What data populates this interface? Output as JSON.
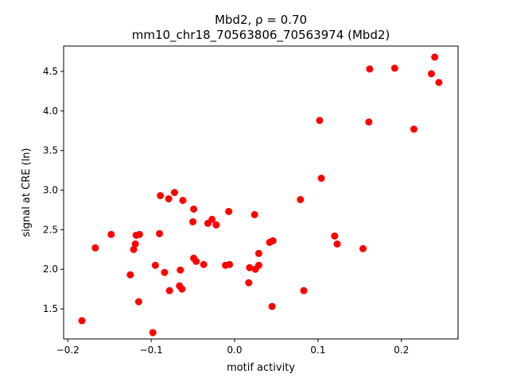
{
  "chart_data": {
    "type": "scatter",
    "title_line1": "Mbd2, ρ = 0.70",
    "title_line2": "mm10_chr18_70563806_70563974 (Mbd2)",
    "xlabel": "motif activity",
    "ylabel": "signal at CRE (ln)",
    "xlim": [
      -0.205,
      0.268
    ],
    "ylim": [
      1.12,
      4.82
    ],
    "xticks": [
      -0.2,
      -0.1,
      0.0,
      0.1,
      0.2
    ],
    "xtick_labels": [
      "−0.2",
      "−0.1",
      "0.0",
      "0.1",
      "0.2"
    ],
    "yticks": [
      1.5,
      2.0,
      2.5,
      3.0,
      3.5,
      4.0,
      4.5
    ],
    "ytick_labels": [
      "1.5",
      "2.0",
      "2.5",
      "3.0",
      "3.5",
      "4.0",
      "4.5"
    ],
    "point_color": "#ff0000",
    "grid": false,
    "points": [
      {
        "x": -0.183,
        "y": 1.35
      },
      {
        "x": -0.167,
        "y": 2.27
      },
      {
        "x": -0.148,
        "y": 2.44
      },
      {
        "x": -0.125,
        "y": 1.93
      },
      {
        "x": -0.121,
        "y": 2.25
      },
      {
        "x": -0.119,
        "y": 2.32
      },
      {
        "x": -0.118,
        "y": 2.43
      },
      {
        "x": -0.114,
        "y": 2.44
      },
      {
        "x": -0.115,
        "y": 1.59
      },
      {
        "x": -0.098,
        "y": 1.2
      },
      {
        "x": -0.095,
        "y": 2.05
      },
      {
        "x": -0.089,
        "y": 2.93
      },
      {
        "x": -0.09,
        "y": 2.45
      },
      {
        "x": -0.084,
        "y": 1.96
      },
      {
        "x": -0.079,
        "y": 2.89
      },
      {
        "x": -0.078,
        "y": 1.73
      },
      {
        "x": -0.072,
        "y": 2.97
      },
      {
        "x": -0.066,
        "y": 1.79
      },
      {
        "x": -0.065,
        "y": 1.99
      },
      {
        "x": -0.062,
        "y": 2.87
      },
      {
        "x": -0.063,
        "y": 1.75
      },
      {
        "x": -0.049,
        "y": 2.76
      },
      {
        "x": -0.05,
        "y": 2.6
      },
      {
        "x": -0.049,
        "y": 2.14
      },
      {
        "x": -0.046,
        "y": 2.1
      },
      {
        "x": -0.037,
        "y": 2.06
      },
      {
        "x": -0.032,
        "y": 2.58
      },
      {
        "x": -0.027,
        "y": 2.63
      },
      {
        "x": -0.022,
        "y": 2.56
      },
      {
        "x": -0.011,
        "y": 2.05
      },
      {
        "x": -0.007,
        "y": 2.73
      },
      {
        "x": -0.006,
        "y": 2.06
      },
      {
        "x": 0.017,
        "y": 1.83
      },
      {
        "x": 0.018,
        "y": 2.02
      },
      {
        "x": 0.024,
        "y": 2.69
      },
      {
        "x": 0.025,
        "y": 2.0
      },
      {
        "x": 0.029,
        "y": 2.05
      },
      {
        "x": 0.029,
        "y": 2.2
      },
      {
        "x": 0.042,
        "y": 2.34
      },
      {
        "x": 0.046,
        "y": 2.36
      },
      {
        "x": 0.045,
        "y": 1.53
      },
      {
        "x": 0.079,
        "y": 2.88
      },
      {
        "x": 0.083,
        "y": 1.73
      },
      {
        "x": 0.102,
        "y": 3.88
      },
      {
        "x": 0.104,
        "y": 3.15
      },
      {
        "x": 0.12,
        "y": 2.42
      },
      {
        "x": 0.123,
        "y": 2.32
      },
      {
        "x": 0.154,
        "y": 2.26
      },
      {
        "x": 0.161,
        "y": 3.86
      },
      {
        "x": 0.162,
        "y": 4.53
      },
      {
        "x": 0.192,
        "y": 4.54
      },
      {
        "x": 0.215,
        "y": 3.77
      },
      {
        "x": 0.236,
        "y": 4.47
      },
      {
        "x": 0.24,
        "y": 4.68
      },
      {
        "x": 0.245,
        "y": 4.36
      }
    ]
  }
}
